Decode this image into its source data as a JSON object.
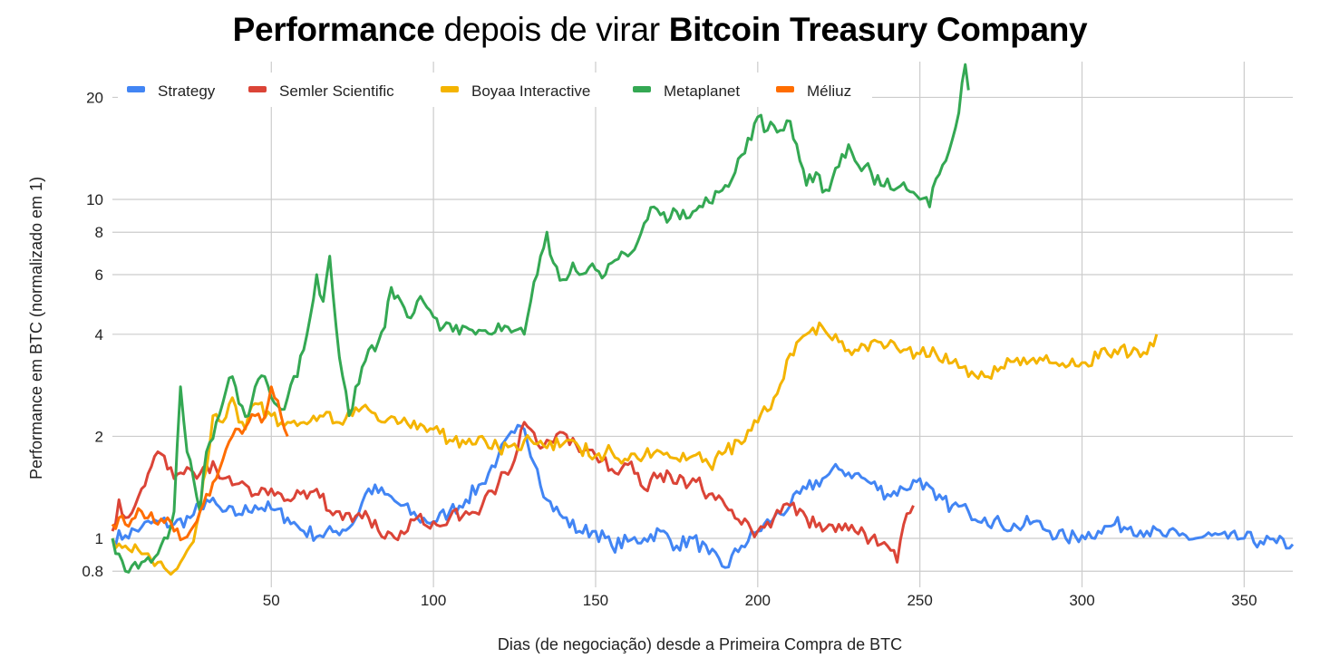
{
  "title": {
    "bold1": "Performance",
    "normal": " depois de virar ",
    "bold2": "Bitcoin Treasury Company"
  },
  "chart_data": {
    "type": "line",
    "title": "Performance depois de virar Bitcoin Treasury Company",
    "xlabel": "Dias (de negociação) desde a Primeira Compra de BTC",
    "ylabel": "Performance em BTC (normalizado em 1)",
    "xlim": [
      1,
      365
    ],
    "ylim": [
      0.8,
      25
    ],
    "y_scale": "log",
    "grid": true,
    "legend_position": "top",
    "x_ticks": [
      50,
      100,
      150,
      200,
      250,
      300,
      350
    ],
    "y_ticks": [
      0.8,
      1,
      2,
      4,
      6,
      8,
      10,
      20
    ],
    "series": [
      {
        "name": "Strategy",
        "color": "#4285F4",
        "x": [
          1,
          5,
          10,
          15,
          20,
          25,
          30,
          35,
          40,
          45,
          50,
          55,
          60,
          65,
          70,
          75,
          80,
          85,
          90,
          95,
          100,
          105,
          110,
          115,
          120,
          125,
          128,
          132,
          135,
          140,
          145,
          150,
          155,
          160,
          165,
          170,
          175,
          180,
          185,
          190,
          195,
          200,
          205,
          210,
          215,
          220,
          225,
          230,
          235,
          240,
          245,
          250,
          255,
          260,
          265,
          270,
          275,
          280,
          285,
          290,
          295,
          300,
          305,
          310,
          315,
          320,
          325,
          330,
          335,
          340,
          345,
          350,
          355,
          360,
          365
        ],
        "values": [
          1.0,
          1.02,
          1.08,
          1.12,
          1.1,
          1.15,
          1.3,
          1.2,
          1.18,
          1.25,
          1.22,
          1.15,
          1.05,
          1.02,
          1.05,
          1.1,
          1.4,
          1.35,
          1.25,
          1.15,
          1.12,
          1.2,
          1.3,
          1.45,
          1.75,
          2.05,
          2.1,
          1.6,
          1.3,
          1.15,
          1.05,
          1.05,
          0.95,
          0.98,
          1.0,
          1.05,
          0.95,
          1.0,
          0.9,
          0.82,
          0.95,
          1.05,
          1.15,
          1.25,
          1.4,
          1.5,
          1.6,
          1.55,
          1.45,
          1.35,
          1.4,
          1.5,
          1.3,
          1.25,
          1.2,
          1.15,
          1.1,
          1.08,
          1.12,
          1.05,
          1.0,
          1.02,
          1.05,
          1.1,
          1.08,
          1.05,
          1.02,
          1.02,
          1.0,
          1.02,
          1.0,
          1.0,
          0.98,
          0.97,
          0.96
        ]
      },
      {
        "name": "Semler Scientific",
        "color": "#DB4437",
        "x": [
          1,
          3,
          5,
          8,
          10,
          12,
          15,
          18,
          20,
          23,
          25,
          28,
          30,
          33,
          35,
          40,
          45,
          50,
          55,
          60,
          65,
          70,
          75,
          80,
          85,
          90,
          95,
          100,
          105,
          110,
          115,
          120,
          125,
          128,
          132,
          135,
          140,
          145,
          150,
          155,
          160,
          165,
          170,
          175,
          180,
          185,
          190,
          195,
          200,
          205,
          210,
          215,
          220,
          225,
          230,
          235,
          240,
          243,
          245,
          248
        ],
        "values": [
          1.05,
          1.3,
          1.15,
          1.25,
          1.4,
          1.55,
          1.8,
          1.6,
          1.5,
          1.55,
          1.6,
          1.55,
          1.65,
          1.6,
          1.5,
          1.45,
          1.35,
          1.4,
          1.3,
          1.38,
          1.32,
          1.2,
          1.12,
          1.15,
          1.0,
          1.05,
          1.15,
          1.12,
          1.15,
          1.2,
          1.25,
          1.45,
          1.7,
          2.2,
          1.9,
          1.95,
          2.05,
          1.8,
          1.75,
          1.6,
          1.65,
          1.4,
          1.55,
          1.45,
          1.5,
          1.35,
          1.25,
          1.1,
          1.05,
          1.15,
          1.25,
          1.15,
          1.05,
          1.1,
          1.05,
          1.0,
          0.95,
          0.85,
          1.1,
          1.25
        ]
      },
      {
        "name": "Boyaa Interactive",
        "color": "#F4B400",
        "x": [
          1,
          5,
          10,
          15,
          18,
          20,
          22,
          25,
          27,
          30,
          32,
          35,
          38,
          40,
          42,
          45,
          50,
          55,
          60,
          65,
          70,
          75,
          80,
          85,
          90,
          95,
          100,
          105,
          110,
          115,
          120,
          125,
          130,
          135,
          140,
          145,
          150,
          155,
          160,
          165,
          170,
          175,
          180,
          185,
          190,
          195,
          200,
          205,
          210,
          215,
          220,
          225,
          230,
          235,
          240,
          245,
          250,
          255,
          260,
          265,
          270,
          275,
          280,
          285,
          290,
          295,
          300,
          305,
          310,
          315,
          320,
          323
        ],
        "values": [
          1.0,
          0.95,
          0.9,
          0.85,
          0.8,
          0.8,
          0.85,
          0.95,
          1.1,
          1.6,
          2.3,
          2.2,
          2.6,
          2.2,
          2.1,
          2.5,
          2.3,
          2.2,
          2.2,
          2.3,
          2.2,
          2.3,
          2.4,
          2.2,
          2.2,
          2.1,
          2.1,
          1.95,
          1.9,
          2.0,
          1.85,
          1.9,
          1.95,
          1.85,
          1.9,
          1.85,
          1.75,
          1.8,
          1.7,
          1.75,
          1.8,
          1.72,
          1.75,
          1.65,
          1.8,
          1.9,
          2.2,
          2.6,
          3.5,
          4.0,
          4.2,
          3.8,
          3.6,
          3.8,
          3.7,
          3.6,
          3.5,
          3.5,
          3.3,
          3.0,
          3.0,
          3.2,
          3.4,
          3.4,
          3.3,
          3.2,
          3.3,
          3.4,
          3.6,
          3.5,
          3.5,
          4.0
        ]
      },
      {
        "name": "Metaplanet",
        "color": "#34A853",
        "x": [
          1,
          3,
          5,
          8,
          10,
          13,
          15,
          18,
          20,
          22,
          24,
          26,
          28,
          30,
          33,
          35,
          38,
          40,
          43,
          45,
          48,
          50,
          53,
          55,
          58,
          60,
          62,
          64,
          66,
          68,
          70,
          72,
          74,
          76,
          78,
          80,
          83,
          85,
          87,
          90,
          92,
          95,
          98,
          100,
          103,
          105,
          108,
          110,
          113,
          115,
          118,
          120,
          123,
          125,
          128,
          130,
          132,
          135,
          137,
          140,
          143,
          145,
          148,
          150,
          153,
          155,
          158,
          160,
          163,
          165,
          168,
          170,
          173,
          175,
          178,
          180,
          183,
          185,
          188,
          190,
          193,
          195,
          198,
          200,
          203,
          205,
          208,
          210,
          213,
          215,
          218,
          220,
          223,
          225,
          228,
          230,
          233,
          235,
          238,
          240,
          243,
          245,
          248,
          250,
          253,
          255,
          258,
          260,
          262,
          264,
          265
        ],
        "values": [
          1.0,
          0.9,
          0.8,
          0.85,
          0.85,
          0.85,
          0.9,
          1.0,
          1.2,
          2.8,
          1.8,
          1.5,
          1.2,
          1.8,
          2.2,
          2.5,
          3.0,
          2.5,
          2.3,
          2.8,
          3.0,
          2.6,
          2.4,
          2.6,
          3.0,
          3.6,
          4.5,
          6.0,
          5.0,
          6.8,
          4.2,
          3.0,
          2.3,
          2.8,
          3.2,
          3.6,
          3.8,
          4.2,
          5.5,
          5.0,
          4.5,
          5.0,
          4.8,
          4.5,
          4.2,
          4.3,
          4.0,
          4.2,
          4.0,
          4.1,
          4.0,
          4.3,
          4.2,
          4.1,
          4.0,
          5.0,
          6.0,
          8.0,
          6.5,
          5.8,
          6.5,
          6.0,
          6.3,
          6.2,
          6.0,
          6.5,
          7.0,
          6.8,
          7.5,
          8.5,
          9.5,
          9.0,
          8.8,
          9.2,
          8.8,
          9.2,
          9.5,
          9.8,
          10.5,
          11.0,
          12.0,
          13.5,
          15.0,
          17.5,
          16.0,
          16.5,
          16.0,
          17.0,
          13.0,
          11.0,
          12.0,
          10.5,
          11.5,
          12.5,
          14.5,
          13.0,
          12.5,
          12.0,
          11.0,
          11.5,
          10.8,
          11.2,
          10.5,
          10.0,
          9.5,
          11.5,
          13.0,
          15.0,
          18.0,
          25.0,
          21.0
        ]
      },
      {
        "name": "Méliuz",
        "color": "#FF6D00",
        "x": [
          1,
          3,
          5,
          8,
          10,
          12,
          15,
          18,
          20,
          23,
          25,
          28,
          30,
          33,
          35,
          38,
          40,
          43,
          45,
          47,
          49,
          50,
          51,
          53,
          55
        ],
        "values": [
          1.1,
          1.15,
          1.1,
          1.15,
          1.2,
          1.15,
          1.1,
          1.15,
          1.05,
          1.0,
          1.05,
          1.2,
          1.35,
          1.5,
          1.7,
          2.0,
          2.1,
          2.2,
          2.3,
          2.2,
          2.5,
          2.8,
          2.6,
          2.3,
          2.0
        ]
      }
    ]
  }
}
